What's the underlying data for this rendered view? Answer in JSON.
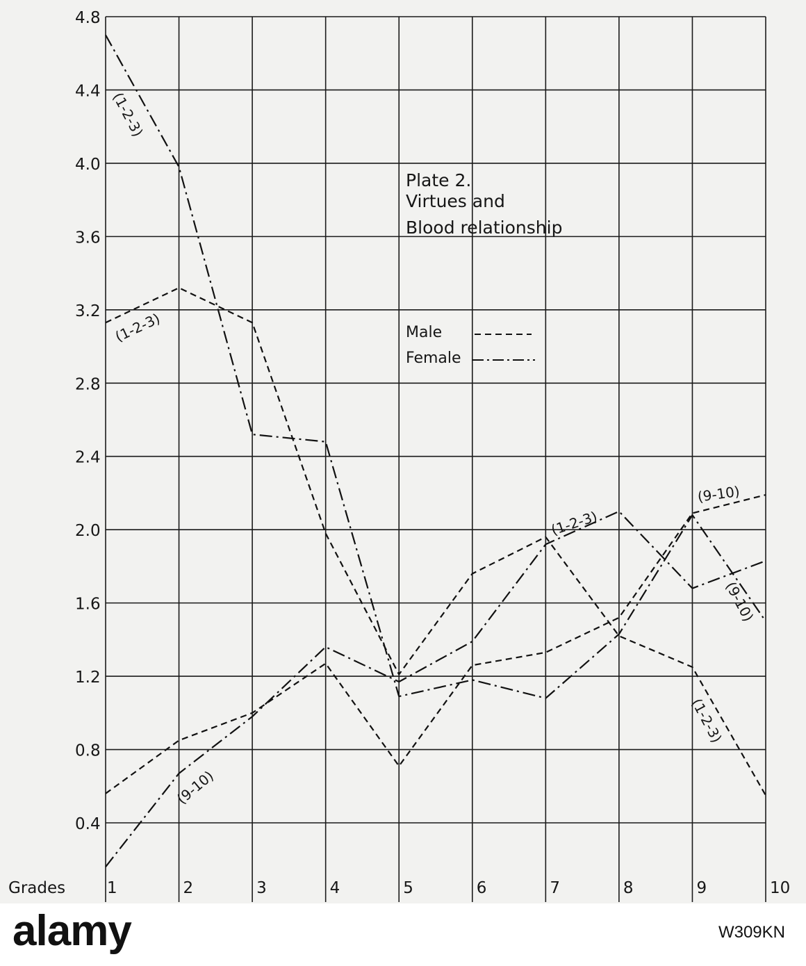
{
  "chart_data": {
    "type": "line",
    "title": "Plate 2.",
    "subtitle_lines": [
      "Virtues and",
      "Blood relationship"
    ],
    "xlabel": "Grades",
    "x": [
      1,
      2,
      3,
      4,
      5,
      6,
      7,
      8,
      9,
      10
    ],
    "x_tick_labels": [
      "1",
      "2",
      "3",
      "4",
      "5",
      "6",
      "7",
      "8",
      "9",
      "10"
    ],
    "ylim": [
      0.4,
      4.8
    ],
    "y_ticks": [
      0.4,
      0.8,
      1.2,
      1.6,
      2.0,
      2.4,
      2.8,
      3.2,
      3.6,
      4.0,
      4.4,
      4.8
    ],
    "y_tick_labels": [
      "0.4",
      "0.8",
      "1.2",
      "1.6",
      "2.0",
      "2.4",
      "2.8",
      "3.2",
      "3.6",
      "4.0",
      "4.4",
      "4.8"
    ],
    "grid": true,
    "legend": {
      "position": "upper-center",
      "entries": [
        {
          "label": "Male",
          "style": "dashed"
        },
        {
          "label": "Female",
          "style": "dash-dot"
        }
      ]
    },
    "series": [
      {
        "sex": "male",
        "group": "(1-2-3)",
        "style": "dashed",
        "values": [
          3.13,
          3.32,
          3.13,
          1.98,
          1.21,
          1.76,
          1.96,
          1.42,
          1.25,
          0.55
        ]
      },
      {
        "sex": "male",
        "group": "(9-10)",
        "style": "dashed",
        "values": [
          0.56,
          0.85,
          1.0,
          1.27,
          0.71,
          1.26,
          1.33,
          1.52,
          2.09,
          2.19
        ]
      },
      {
        "sex": "female",
        "group": "(1-2-3)",
        "style": "dash-dot",
        "values": [
          4.7,
          3.98,
          2.52,
          2.48,
          1.09,
          1.18,
          1.08,
          1.43,
          2.08,
          1.5
        ]
      },
      {
        "sex": "female",
        "group": "(9-10)",
        "style": "dash-dot",
        "values": [
          0.16,
          0.67,
          0.98,
          1.36,
          1.17,
          1.39,
          1.92,
          2.1,
          1.68,
          1.83
        ]
      }
    ],
    "annotations": [
      {
        "text": "(1-2-3)",
        "near": "female (1-2-3), grades 1-2"
      },
      {
        "text": "(1-2-3)",
        "near": "male (1-2-3), grade 1"
      },
      {
        "text": "(9-10)",
        "near": "female (9-10), grade 2"
      },
      {
        "text": "(1-2-3)",
        "near": "male (1-2-3), grades 7-8"
      },
      {
        "text": "(9-10)",
        "near": "male (9-10), grades 9-10"
      },
      {
        "text": "(9-10)",
        "near": "female (9-10), grade 10"
      },
      {
        "text": "(1-2-3)",
        "near": "male (1-2-3), grades 9-10"
      }
    ]
  },
  "watermark": {
    "text": "alamy",
    "code": "W309KN"
  }
}
